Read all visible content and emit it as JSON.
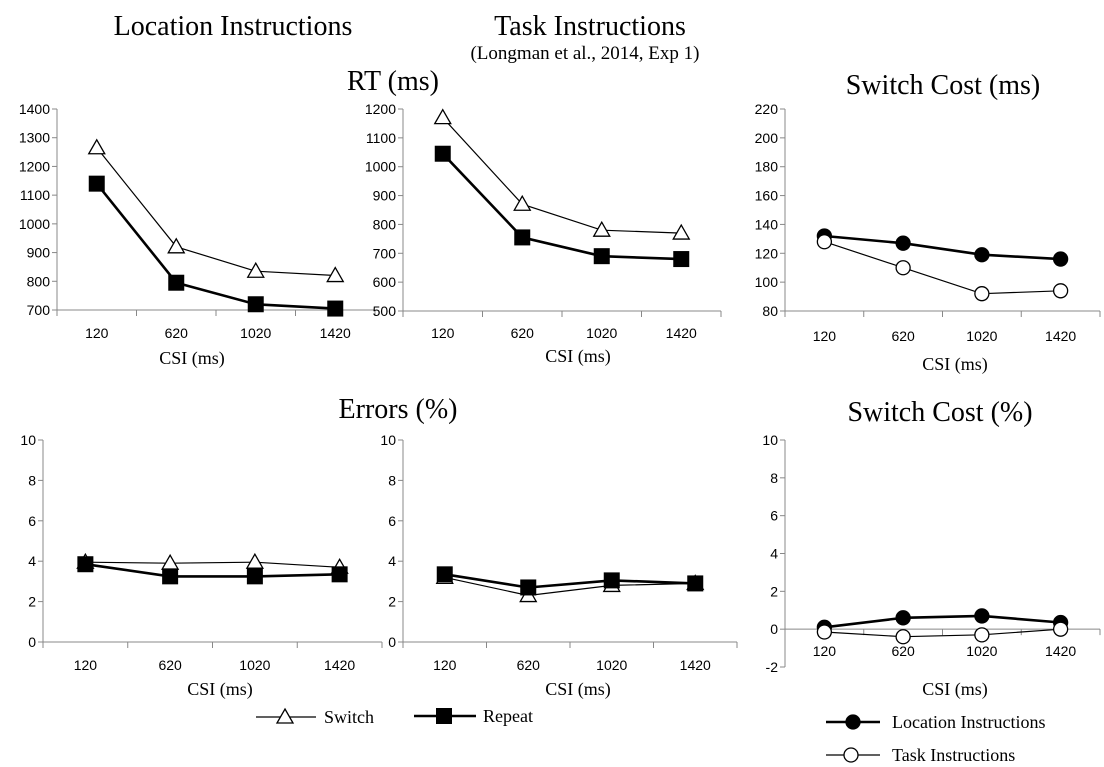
{
  "headings": {
    "location": "Location Instructions",
    "task": "Task Instructions",
    "task_sub": "(Longman et al., 2014, Exp 1)",
    "rt": "RT (ms)",
    "switch_cost_ms": "Switch Cost (ms)",
    "errors": "Errors (%)",
    "switch_cost_pct": "Switch Cost (%)"
  },
  "colors": {
    "line": "#000000",
    "open_fill": "#ffffff",
    "filled": "#000000",
    "axis": "#888888"
  },
  "chart_data": [
    {
      "id": "rt-location",
      "type": "line",
      "xlabel": "CSI (ms)",
      "ylabel": "",
      "categories": [
        "120",
        "620",
        "1020",
        "1420"
      ],
      "ylim": [
        700,
        1400
      ],
      "yticks": [
        700,
        800,
        900,
        1000,
        1100,
        1200,
        1300,
        1400
      ],
      "grid": false,
      "legend": "bottom",
      "series": [
        {
          "name": "Switch",
          "marker": "triangle",
          "fill": "open",
          "values": [
            1265,
            920,
            835,
            820
          ]
        },
        {
          "name": "Repeat",
          "marker": "square",
          "fill": "filled",
          "values": [
            1140,
            795,
            720,
            705
          ]
        }
      ]
    },
    {
      "id": "rt-task",
      "type": "line",
      "xlabel": "CSI (ms)",
      "ylabel": "",
      "categories": [
        "120",
        "620",
        "1020",
        "1420"
      ],
      "ylim": [
        500,
        1200
      ],
      "yticks": [
        500,
        600,
        700,
        800,
        900,
        1000,
        1100,
        1200
      ],
      "grid": false,
      "legend": "bottom",
      "series": [
        {
          "name": "Switch",
          "marker": "triangle",
          "fill": "open",
          "values": [
            1170,
            870,
            780,
            770
          ]
        },
        {
          "name": "Repeat",
          "marker": "square",
          "fill": "filled",
          "values": [
            1045,
            755,
            690,
            680
          ]
        }
      ]
    },
    {
      "id": "switch-cost-ms",
      "type": "line",
      "xlabel": "CSI (ms)",
      "ylabel": "",
      "categories": [
        "120",
        "620",
        "1020",
        "1420"
      ],
      "ylim": [
        80,
        220
      ],
      "yticks": [
        80,
        100,
        120,
        140,
        160,
        180,
        200,
        220
      ],
      "grid": false,
      "legend": "bottom-right",
      "series": [
        {
          "name": "Location Instructions",
          "marker": "circle",
          "fill": "filled",
          "values": [
            132,
            127,
            119,
            116
          ]
        },
        {
          "name": "Task Instructions",
          "marker": "circle",
          "fill": "open",
          "values": [
            128,
            110,
            92,
            94
          ]
        }
      ]
    },
    {
      "id": "errors-location",
      "type": "line",
      "xlabel": "CSI (ms)",
      "ylabel": "",
      "categories": [
        "120",
        "620",
        "1020",
        "1420"
      ],
      "ylim": [
        0,
        10
      ],
      "yticks": [
        0,
        2,
        4,
        6,
        8,
        10
      ],
      "grid": false,
      "legend": "bottom",
      "series": [
        {
          "name": "Switch",
          "marker": "triangle",
          "fill": "open",
          "values": [
            3.95,
            3.9,
            3.95,
            3.7
          ]
        },
        {
          "name": "Repeat",
          "marker": "square",
          "fill": "filled",
          "values": [
            3.85,
            3.25,
            3.25,
            3.35
          ]
        }
      ]
    },
    {
      "id": "errors-task",
      "type": "line",
      "xlabel": "CSI (ms)",
      "ylabel": "",
      "categories": [
        "120",
        "620",
        "1020",
        "1420"
      ],
      "ylim": [
        0,
        10
      ],
      "yticks": [
        0,
        2,
        4,
        6,
        8,
        10
      ],
      "grid": false,
      "legend": "bottom",
      "series": [
        {
          "name": "Switch",
          "marker": "triangle",
          "fill": "open",
          "values": [
            3.2,
            2.3,
            2.8,
            2.9
          ]
        },
        {
          "name": "Repeat",
          "marker": "square",
          "fill": "filled",
          "values": [
            3.35,
            2.7,
            3.05,
            2.9
          ]
        }
      ]
    },
    {
      "id": "switch-cost-pct",
      "type": "line",
      "xlabel": "CSI (ms)",
      "ylabel": "",
      "categories": [
        "120",
        "620",
        "1020",
        "1420"
      ],
      "ylim": [
        -2,
        10
      ],
      "yticks": [
        -2,
        0,
        2,
        4,
        6,
        8,
        10
      ],
      "grid": false,
      "legend": "bottom-right",
      "series": [
        {
          "name": "Location Instructions",
          "marker": "circle",
          "fill": "filled",
          "values": [
            0.1,
            0.6,
            0.7,
            0.35
          ]
        },
        {
          "name": "Task Instructions",
          "marker": "circle",
          "fill": "open",
          "values": [
            -0.15,
            -0.4,
            -0.3,
            0.0
          ]
        }
      ]
    }
  ],
  "legends": {
    "left": [
      {
        "label": "Switch",
        "marker": "triangle",
        "fill": "open"
      },
      {
        "label": "Repeat",
        "marker": "square",
        "fill": "filled"
      }
    ],
    "right": [
      {
        "label": "Location Instructions",
        "marker": "circle",
        "fill": "filled"
      },
      {
        "label": "Task Instructions",
        "marker": "circle",
        "fill": "open"
      }
    ]
  }
}
